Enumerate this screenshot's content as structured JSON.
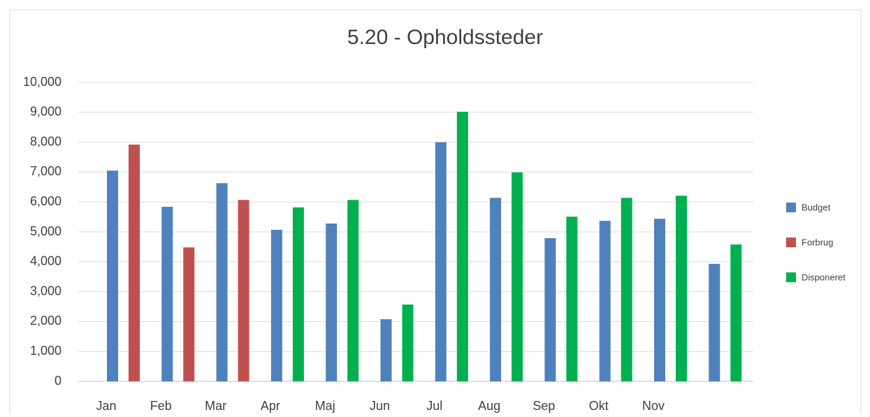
{
  "chart_data": {
    "type": "bar",
    "title": "5.20 - Opholdssteder",
    "categories": [
      "Jan",
      "Feb",
      "Mar",
      "Apr",
      "Maj",
      "Jun",
      "Jul",
      "Aug",
      "Sep",
      "Okt",
      "Nov",
      null
    ],
    "series": [
      {
        "name": "Budget",
        "color": "#4f81bd",
        "values": [
          7050,
          5840,
          6630,
          5070,
          5280,
          2080,
          8000,
          6140,
          4790,
          5370,
          5440,
          3930
        ]
      },
      {
        "name": "Forbrug",
        "color": "#c0504d",
        "values": [
          7920,
          4480,
          6070,
          null,
          null,
          null,
          null,
          null,
          null,
          null,
          null,
          null
        ]
      },
      {
        "name": "Disponeret",
        "color": "#00b050",
        "values": [
          null,
          null,
          null,
          5820,
          6070,
          2570,
          9020,
          6990,
          5510,
          6140,
          6210,
          4580
        ]
      }
    ],
    "ylim": [
      0,
      10000
    ],
    "yticks": [
      0,
      {
        "value": 1000,
        "label": "1,000"
      },
      {
        "value": 2000,
        "label": "2,000"
      },
      {
        "value": 3000,
        "label": "3,000"
      },
      {
        "value": 4000,
        "label": "4,000"
      },
      {
        "value": 5000,
        "label": "5,000"
      },
      {
        "value": 6000,
        "label": "6,000"
      },
      {
        "value": 7000,
        "label": "7,000"
      },
      {
        "value": 8000,
        "label": "8,000"
      },
      {
        "value": 9000,
        "label": "9,000"
      },
      {
        "value": 10000,
        "label": "10,000"
      }
    ],
    "grid": true,
    "legend": "right"
  }
}
